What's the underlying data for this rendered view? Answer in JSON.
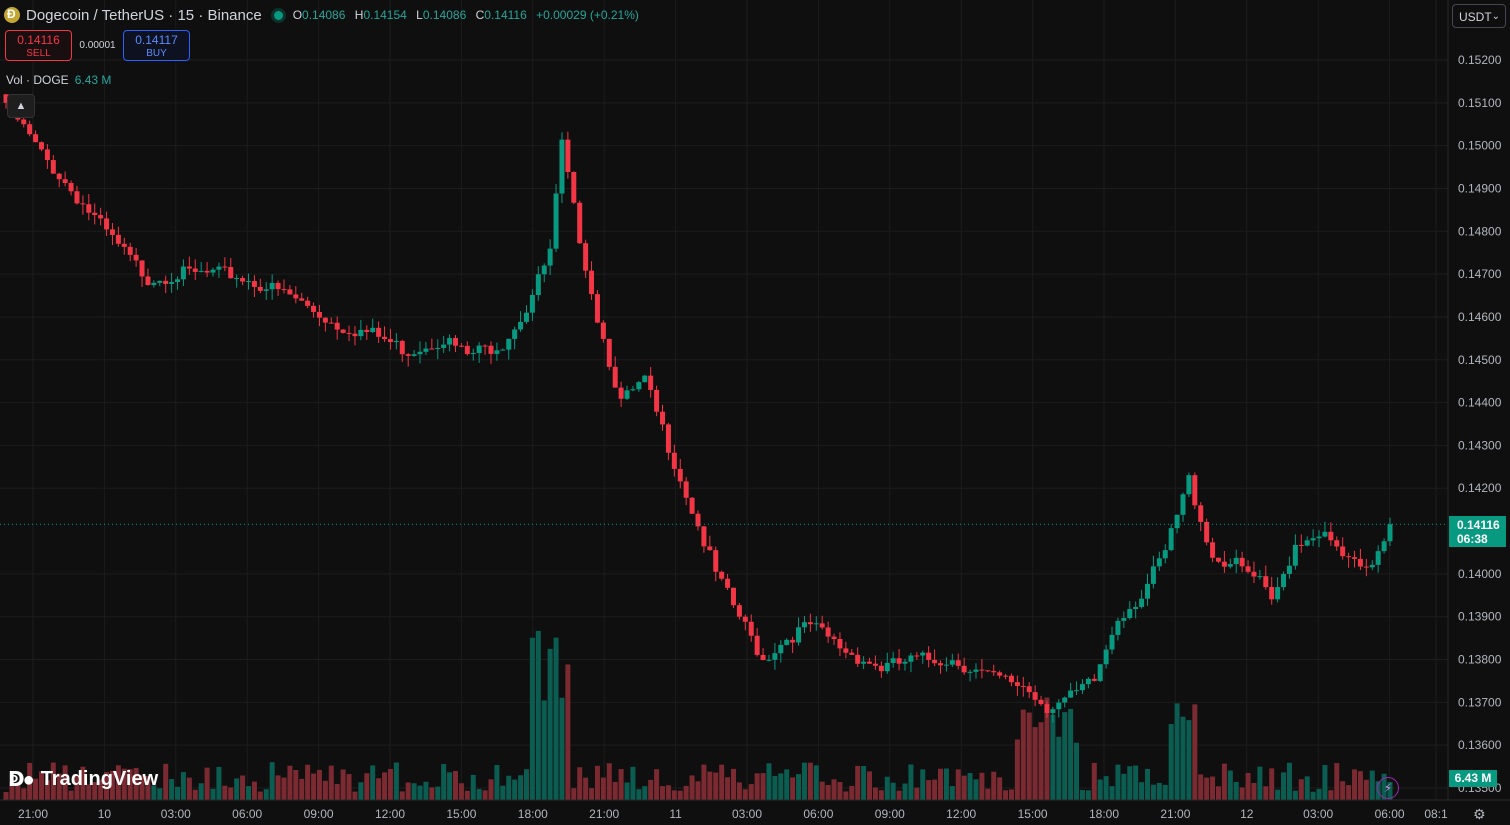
{
  "header": {
    "symbol": "Dogecoin / TetherUS · 15 · Binance",
    "ohlc": {
      "o_label": "O",
      "o": "0.14086",
      "h_label": "H",
      "h": "0.14154",
      "l_label": "L",
      "l": "0.14086",
      "c_label": "C",
      "c": "0.14116",
      "change": "+0.00029 (+0.21%)"
    }
  },
  "trade": {
    "sell_price": "0.14116",
    "sell_label": "SELL",
    "spread": "0.00001",
    "buy_price": "0.14117",
    "buy_label": "BUY"
  },
  "volume_legend": {
    "label": "Vol · DOGE",
    "value": "6.43 M"
  },
  "currency_select": "USDT",
  "last_price": {
    "price": "0.14116",
    "countdown": "06:38"
  },
  "volume_badge": "6.43 M",
  "logo_text": "TradingView",
  "colors": {
    "up": "#089981",
    "down": "#f23645",
    "up_vol": "#0b5d52",
    "down_vol": "#7a2a30"
  },
  "chart_data": {
    "type": "candlestick",
    "price_axis_ticks": [
      "0.15200",
      "0.15100",
      "0.15000",
      "0.14900",
      "0.14800",
      "0.14700",
      "0.14600",
      "0.14500",
      "0.14400",
      "0.14300",
      "0.14200",
      "0.14000",
      "0.13900",
      "0.13800",
      "0.13700",
      "0.13600",
      "0.13500"
    ],
    "time_axis_ticks": [
      "21:00",
      "10",
      "03:00",
      "06:00",
      "09:00",
      "12:00",
      "15:00",
      "18:00",
      "21:00",
      "11",
      "03:00",
      "06:00",
      "09:00",
      "12:00",
      "15:00",
      "18:00",
      "21:00",
      "12",
      "03:00",
      "06:00",
      "08:1"
    ],
    "ylim": [
      0.1353,
      0.1524
    ],
    "last_price": 0.14116,
    "keypoints": [
      [
        0,
        0.151
      ],
      [
        6,
        0.1498
      ],
      [
        12,
        0.1488
      ],
      [
        18,
        0.1478
      ],
      [
        24,
        0.1469
      ],
      [
        30,
        0.147
      ],
      [
        38,
        0.147
      ],
      [
        42,
        0.1468
      ],
      [
        48,
        0.1465
      ],
      [
        56,
        0.1458
      ],
      [
        62,
        0.1456
      ],
      [
        68,
        0.1452
      ],
      [
        74,
        0.1455
      ],
      [
        78,
        0.1451
      ],
      [
        84,
        0.1454
      ],
      [
        88,
        0.1462
      ],
      [
        92,
        0.1475
      ],
      [
        94,
        0.15
      ],
      [
        96,
        0.1485
      ],
      [
        100,
        0.146
      ],
      [
        104,
        0.144
      ],
      [
        108,
        0.1445
      ],
      [
        112,
        0.143
      ],
      [
        116,
        0.1415
      ],
      [
        120,
        0.14
      ],
      [
        124,
        0.139
      ],
      [
        128,
        0.138
      ],
      [
        132,
        0.1385
      ],
      [
        136,
        0.1388
      ],
      [
        142,
        0.1382
      ],
      [
        148,
        0.1378
      ],
      [
        154,
        0.138
      ],
      [
        160,
        0.138
      ],
      [
        166,
        0.1376
      ],
      [
        172,
        0.1374
      ],
      [
        176,
        0.1369
      ],
      [
        180,
        0.1371
      ],
      [
        184,
        0.1375
      ],
      [
        188,
        0.139
      ],
      [
        192,
        0.1395
      ],
      [
        196,
        0.1405
      ],
      [
        200,
        0.1422
      ],
      [
        204,
        0.1404
      ],
      [
        208,
        0.1402
      ],
      [
        212,
        0.1398
      ],
      [
        214,
        0.1393
      ],
      [
        218,
        0.1407
      ],
      [
        222,
        0.141
      ],
      [
        226,
        0.1404
      ],
      [
        230,
        0.14
      ],
      [
        234,
        0.14116
      ]
    ]
  }
}
